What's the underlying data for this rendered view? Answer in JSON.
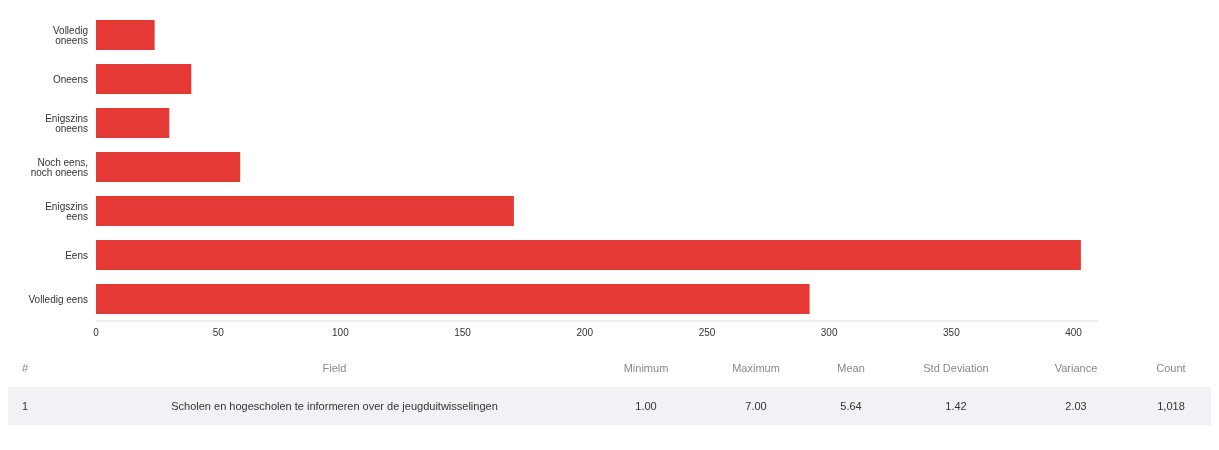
{
  "chart_data": {
    "type": "bar",
    "orientation": "horizontal",
    "categories": [
      "Volledig oneens",
      "Oneens",
      "Enigszins oneens",
      "Noch eens, noch oneens",
      "Enigszins eens",
      "Eens",
      "Volledig eens"
    ],
    "values": [
      24,
      39,
      30,
      59,
      171,
      403,
      292
    ],
    "color": "#e53935",
    "xlim": [
      0,
      410
    ],
    "xticks": [
      0,
      50,
      100,
      150,
      200,
      250,
      300,
      350,
      400
    ],
    "grid": false,
    "annotations": [
      "#",
      "Field",
      "Minimum",
      "Maximum",
      "Mean",
      "Std Deviation",
      "Variance",
      "Count",
      "1",
      "Scholen en hogescholen te informeren over de jeugduitwisselingen",
      "1.00",
      "7.00",
      "5.64",
      "1.42",
      "2.03",
      "1,018"
    ]
  }
}
